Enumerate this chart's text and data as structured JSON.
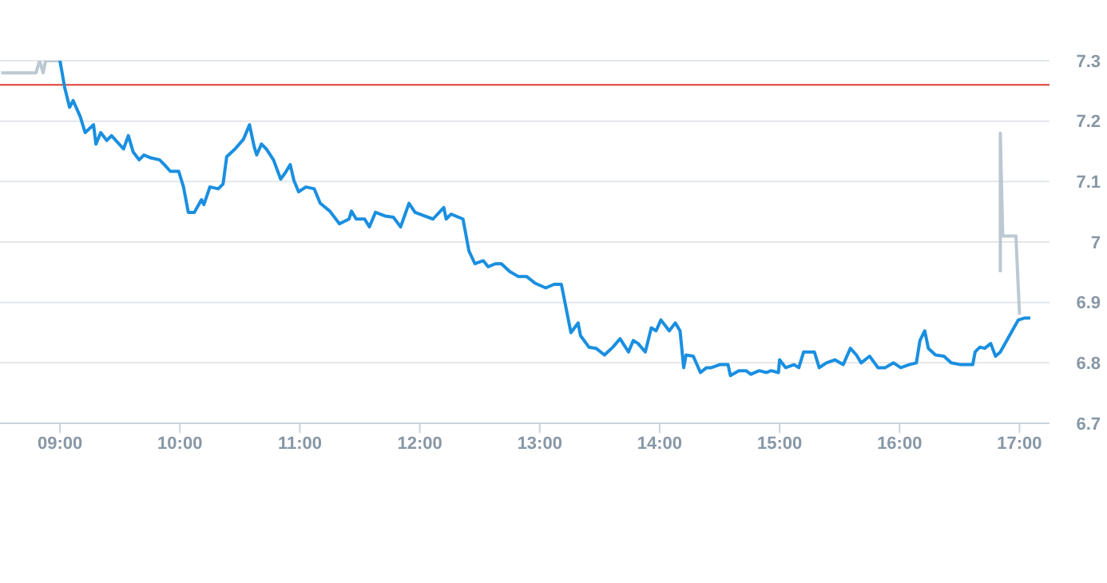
{
  "chart_data": {
    "type": "line",
    "xlim": [
      8.5,
      17.25
    ],
    "ylim": [
      6.7,
      7.3
    ],
    "xticks": [
      {
        "value": 9,
        "label": "09:00"
      },
      {
        "value": 10,
        "label": "10:00"
      },
      {
        "value": 11,
        "label": "11:00"
      },
      {
        "value": 12,
        "label": "12:00"
      },
      {
        "value": 13,
        "label": "13:00"
      },
      {
        "value": 14,
        "label": "14:00"
      },
      {
        "value": 15,
        "label": "15:00"
      },
      {
        "value": 16,
        "label": "16:00"
      },
      {
        "value": 17,
        "label": "17:00"
      }
    ],
    "yticks": [
      6.7,
      6.8,
      6.9,
      7,
      7.1,
      7.2,
      7.3
    ],
    "grid": "y",
    "marker": "none",
    "line_style": "solid",
    "ref_lines": [
      {
        "axis": "y",
        "value": 7.26,
        "color": "#e03c31"
      }
    ],
    "series": [
      {
        "color": "#bcc8d2",
        "x": [
          8.51,
          8.8,
          8.83,
          8.86,
          8.88,
          9.0
        ],
        "values": [
          7.28,
          7.28,
          7.3,
          7.28,
          7.3,
          7.3
        ]
      },
      {
        "color": "#1a8fe0",
        "x": [
          9.0,
          9.04,
          9.08,
          9.11,
          9.17,
          9.21,
          9.28,
          9.3,
          9.34,
          9.39,
          9.43,
          9.53,
          9.57,
          9.61,
          9.66,
          9.7,
          9.76,
          9.83,
          9.87,
          9.92,
          9.99,
          10.03,
          10.07,
          10.12,
          10.18,
          10.2,
          10.25,
          10.32,
          10.36,
          10.39,
          10.46,
          10.53,
          10.58,
          10.62,
          10.64,
          10.68,
          10.72,
          10.78,
          10.84,
          10.88,
          10.92,
          10.95,
          10.99,
          11.05,
          11.12,
          11.17,
          11.25,
          11.33,
          11.41,
          11.43,
          11.47,
          11.54,
          11.58,
          11.63,
          11.71,
          11.78,
          11.84,
          11.91,
          11.96,
          12.04,
          12.11,
          12.2,
          12.22,
          12.26,
          12.36,
          12.41,
          12.46,
          12.53,
          12.57,
          12.63,
          12.68,
          12.75,
          12.82,
          12.89,
          12.96,
          13.05,
          13.12,
          13.18,
          13.22,
          13.26,
          13.32,
          13.34,
          13.41,
          13.47,
          13.54,
          13.61,
          13.67,
          13.74,
          13.78,
          13.82,
          13.88,
          13.93,
          13.97,
          14.01,
          14.08,
          14.13,
          14.17,
          14.2,
          14.22,
          14.28,
          14.34,
          14.39,
          14.43,
          14.5,
          14.57,
          14.59,
          14.66,
          14.72,
          14.76,
          14.83,
          14.89,
          14.93,
          14.99,
          15.0,
          15.05,
          15.12,
          15.16,
          15.2,
          15.29,
          15.33,
          15.39,
          15.46,
          15.53,
          15.59,
          15.64,
          15.68,
          15.75,
          15.82,
          15.88,
          15.95,
          16.01,
          16.08,
          16.14,
          16.17,
          16.21,
          16.24,
          16.3,
          16.37,
          16.43,
          16.51,
          16.61,
          16.63,
          16.67,
          16.71,
          16.76,
          16.8,
          16.84,
          16.99,
          17.04,
          17.09
        ],
        "values": [
          7.3,
          7.255,
          7.223,
          7.234,
          7.207,
          7.181,
          7.194,
          7.162,
          7.181,
          7.168,
          7.176,
          7.154,
          7.176,
          7.149,
          7.136,
          7.144,
          7.139,
          7.136,
          7.128,
          7.117,
          7.117,
          7.091,
          7.049,
          7.049,
          7.07,
          7.062,
          7.091,
          7.088,
          7.096,
          7.141,
          7.154,
          7.17,
          7.194,
          7.157,
          7.144,
          7.162,
          7.154,
          7.136,
          7.104,
          7.115,
          7.128,
          7.102,
          7.083,
          7.091,
          7.088,
          7.064,
          7.051,
          7.03,
          7.038,
          7.051,
          7.038,
          7.038,
          7.025,
          7.049,
          7.043,
          7.041,
          7.025,
          7.064,
          7.049,
          7.043,
          7.038,
          7.057,
          7.038,
          7.046,
          7.038,
          6.985,
          6.964,
          6.969,
          6.959,
          6.964,
          6.964,
          6.951,
          6.943,
          6.943,
          6.932,
          6.924,
          6.93,
          6.93,
          6.89,
          6.85,
          6.866,
          6.845,
          6.826,
          6.824,
          6.813,
          6.826,
          6.84,
          6.818,
          6.837,
          6.832,
          6.818,
          6.858,
          6.853,
          6.871,
          6.853,
          6.866,
          6.853,
          6.792,
          6.813,
          6.811,
          6.784,
          6.792,
          6.792,
          6.797,
          6.797,
          6.779,
          6.787,
          6.787,
          6.781,
          6.787,
          6.784,
          6.787,
          6.784,
          6.805,
          6.792,
          6.797,
          6.792,
          6.818,
          6.818,
          6.792,
          6.8,
          6.805,
          6.797,
          6.824,
          6.813,
          6.8,
          6.811,
          6.792,
          6.792,
          6.8,
          6.792,
          6.797,
          6.8,
          6.837,
          6.853,
          6.824,
          6.813,
          6.811,
          6.8,
          6.797,
          6.797,
          6.818,
          6.826,
          6.824,
          6.832,
          6.811,
          6.818,
          6.871,
          6.874,
          6.874
        ]
      },
      {
        "color": "#bcc8d2",
        "x": [
          16.84,
          16.84,
          16.86,
          16.97,
          17.0
        ],
        "values": [
          6.95,
          7.18,
          7.01,
          7.01,
          6.88
        ]
      }
    ]
  }
}
